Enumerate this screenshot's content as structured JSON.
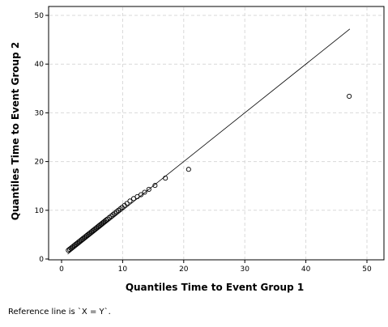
{
  "chart_data": {
    "type": "scatter",
    "title": "",
    "xlabel": "Quantiles Time to Event Group 1",
    "ylabel": "Quantiles Time to Event Group 2",
    "xlim": [
      0,
      52
    ],
    "ylim": [
      0,
      52
    ],
    "x_ticks": [
      0,
      10,
      20,
      30,
      40,
      50
    ],
    "y_ticks": [
      0,
      10,
      20,
      30,
      40,
      50
    ],
    "grid": true,
    "grid_style": "dashed",
    "marker": "open-circle",
    "reference_line": {
      "x": [
        1.0,
        47.2
      ],
      "y": [
        1.0,
        47.2
      ]
    },
    "series": [
      {
        "x": [
          1.1,
          1.3,
          1.5,
          1.7,
          1.9,
          2.1,
          2.3,
          2.5,
          2.7,
          2.9,
          3.1,
          3.3,
          3.5,
          3.7,
          3.9,
          4.1,
          4.3,
          4.5,
          4.7,
          4.9,
          5.1,
          5.3,
          5.5,
          5.7,
          5.9,
          6.1,
          6.3,
          6.5,
          6.7,
          6.9,
          7.1,
          7.3,
          7.5,
          7.8,
          8.1,
          8.4,
          8.7,
          9.0,
          9.3,
          9.6,
          9.9,
          10.3,
          10.7,
          11.2,
          11.8,
          12.4,
          13.0,
          13.6,
          14.3,
          15.3,
          17.0,
          20.8,
          47.1
        ],
        "y": [
          1.8,
          2.0,
          2.2,
          2.4,
          2.6,
          2.8,
          3.0,
          3.2,
          3.4,
          3.6,
          3.8,
          4.0,
          4.2,
          4.4,
          4.6,
          4.8,
          5.0,
          5.2,
          5.4,
          5.6,
          5.8,
          6.0,
          6.2,
          6.4,
          6.6,
          6.8,
          7.0,
          7.2,
          7.4,
          7.6,
          7.8,
          8.0,
          8.2,
          8.5,
          8.8,
          9.1,
          9.4,
          9.7,
          10.0,
          10.3,
          10.6,
          11.0,
          11.4,
          11.9,
          12.4,
          12.8,
          13.2,
          13.7,
          14.3,
          15.1,
          16.6,
          18.4,
          33.4
        ]
      }
    ]
  },
  "footnote": "Reference line is `X = Y`."
}
